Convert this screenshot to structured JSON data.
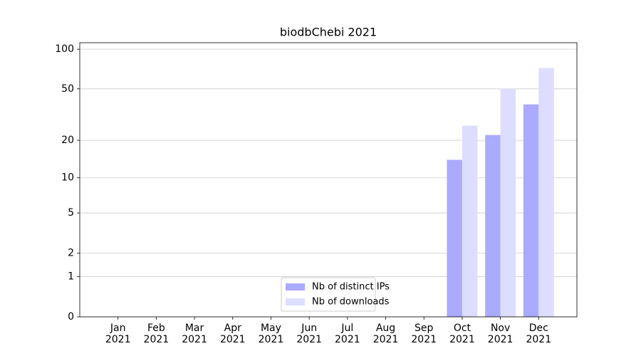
{
  "chart_data": {
    "type": "bar",
    "title": "biodbChebi 2021",
    "categories": [
      "Jan\n2021",
      "Feb\n2021",
      "Mar\n2021",
      "Apr\n2021",
      "May\n2021",
      "Jun\n2021",
      "Jul\n2021",
      "Aug\n2021",
      "Sep\n2021",
      "Oct\n2021",
      "Nov\n2021",
      "Dec\n2021"
    ],
    "series": [
      {
        "name": "Nb of distinct IPs",
        "color": "#aaaaff",
        "values": [
          0,
          0,
          0,
          0,
          0,
          0,
          0,
          0,
          0,
          14,
          22,
          38
        ]
      },
      {
        "name": "Nb of downloads",
        "color": "#ddddff",
        "values": [
          0,
          0,
          0,
          0,
          0,
          0,
          0,
          0,
          0,
          26,
          50,
          72
        ]
      }
    ],
    "yscale": "log1p",
    "ylim": [
      0,
      112
    ],
    "yticks": [
      0,
      1,
      2,
      5,
      10,
      20,
      50,
      100
    ],
    "grid": true,
    "legend": "lower center"
  }
}
